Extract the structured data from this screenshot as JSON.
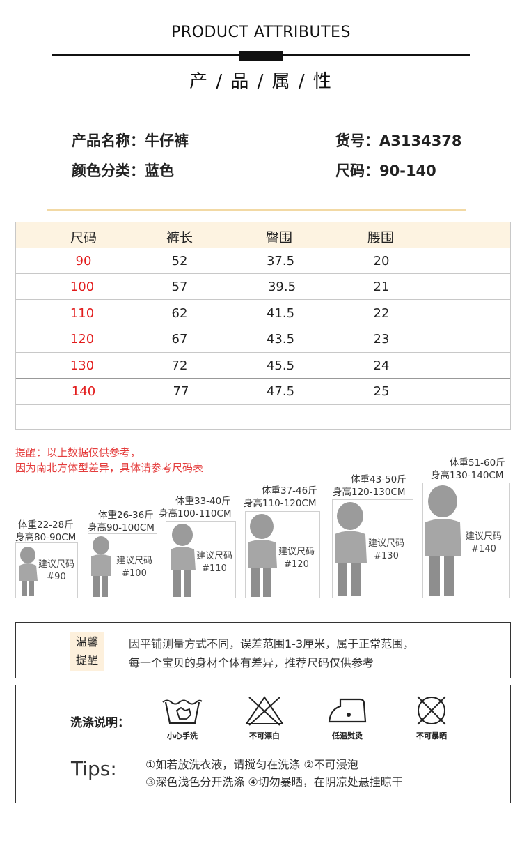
{
  "header": {
    "title_en": "PRODUCT ATTRIBUTES",
    "title_cn": "产 / 品 / 属 / 性"
  },
  "attributes": {
    "name": "产品名称：牛仔裤",
    "sku": "货号：A3134378",
    "color": "颜色分类：蓝色",
    "size": "尺码：90-140"
  },
  "size_table": {
    "headers": [
      "尺码",
      "裤长",
      "臀围",
      "腰围"
    ],
    "rows": [
      [
        "90",
        "52",
        "37.5",
        "20"
      ],
      [
        "100",
        "57",
        "39.5",
        "21"
      ],
      [
        "110",
        "62",
        "41.5",
        "22"
      ],
      [
        "120",
        "67",
        "43.5",
        "23"
      ],
      [
        "130",
        "72",
        "45.5",
        "24"
      ],
      [
        "140",
        "77",
        "47.5",
        "25"
      ]
    ]
  },
  "reminder": {
    "line1": "提醒：以上数据仅供参考，",
    "line2": "因为南北方体型差异，具体请参考尺码表"
  },
  "kids": [
    {
      "weight": "体重22-28斤",
      "height": "身高80-90CM",
      "rec": "建议尺码",
      "size": "#90"
    },
    {
      "weight": "体重26-36斤",
      "height": "身高90-100CM",
      "rec": "建议尺码",
      "size": "#100"
    },
    {
      "weight": "体重33-40斤",
      "height": "身高100-110CM",
      "rec": "建议尺码",
      "size": "#110"
    },
    {
      "weight": "体重37-46斤",
      "height": "身高110-120CM",
      "rec": "建议尺码",
      "size": "#120"
    },
    {
      "weight": "体重43-50斤",
      "height": "身高120-130CM",
      "rec": "建议尺码",
      "size": "#130"
    },
    {
      "weight": "体重51-60斤",
      "height": "身高130-140CM",
      "rec": "建议尺码",
      "size": "#140"
    }
  ],
  "warm_tip": {
    "tag_line1": "温馨",
    "tag_line2": "提醒",
    "text1": "因平铺测量方式不同，误差范围1-3厘米，属于正常范围，",
    "text2": "每一个宝贝的身材个体有差异，推荐尺码仅供参考"
  },
  "wash": {
    "label": "洗涤说明：",
    "icons": [
      {
        "icon": "hand-wash-icon",
        "label": "小心手洗"
      },
      {
        "icon": "no-bleach-icon",
        "label": "不可漂白"
      },
      {
        "icon": "low-iron-icon",
        "label": "低温熨烫"
      },
      {
        "icon": "no-sun-dry-icon",
        "label": "不可暴晒"
      }
    ],
    "tips_label": "Tips:",
    "tips_line1": "①如若放洗衣液，请搅匀在洗涤 ②不可浸泡",
    "tips_line2": "③深色浅色分开洗涤 ④切勿暴晒，在阴凉处悬挂晾干"
  }
}
